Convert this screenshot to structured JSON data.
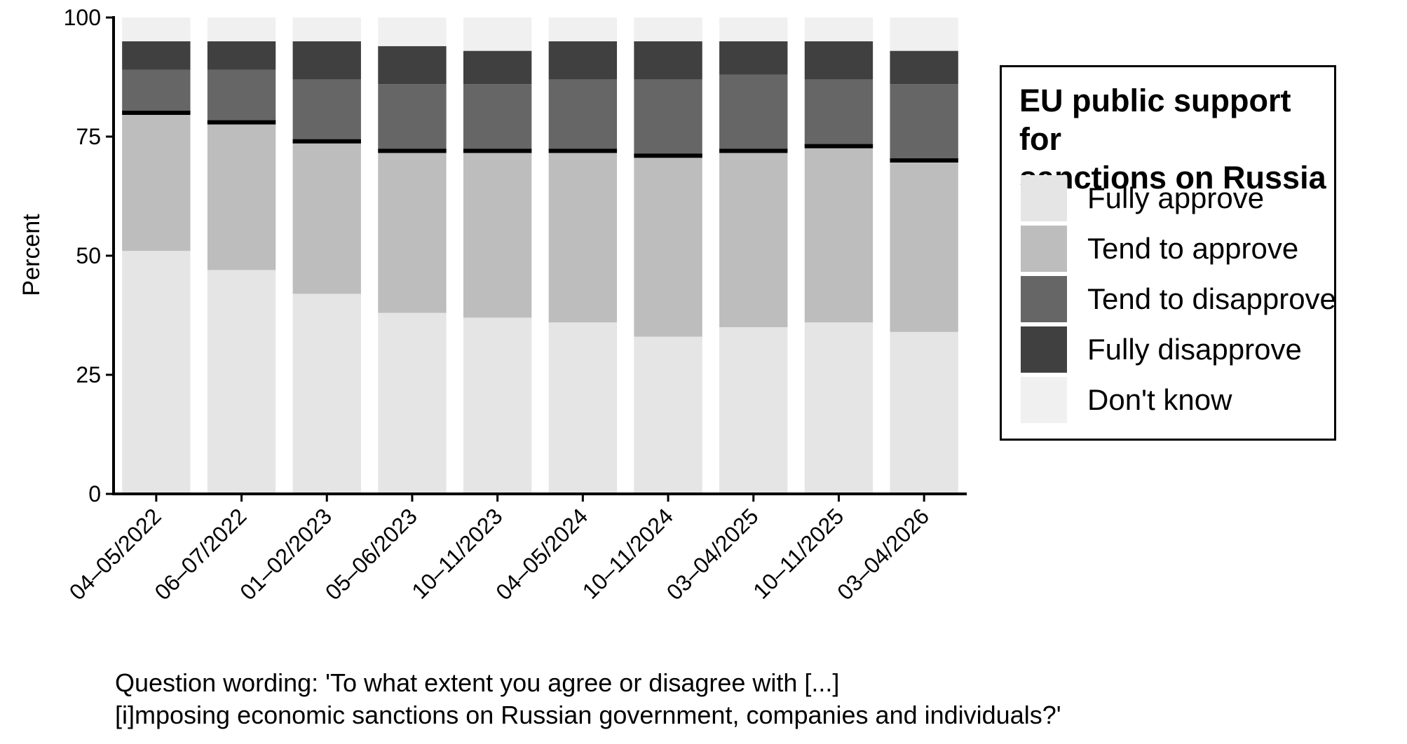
{
  "chart_data": {
    "type": "bar",
    "stacked": true,
    "ylabel": "Percent",
    "ylim": [
      0,
      100
    ],
    "yticks": [
      0,
      25,
      50,
      75,
      100
    ],
    "categories": [
      "04–05/2022",
      "06–07/2022",
      "01–02/2023",
      "05–06/2023",
      "10–11/2023",
      "04–05/2024",
      "10–11/2024",
      "03–04/2025",
      "10–11/2025",
      "03–04/2026"
    ],
    "series": [
      {
        "name": "Fully approve",
        "color": "#e5e5e5",
        "values": [
          51,
          47,
          42,
          38,
          37,
          36,
          33,
          35,
          36,
          34
        ]
      },
      {
        "name": "Tend to approve",
        "color": "#bdbdbd",
        "values": [
          29,
          31,
          32,
          34,
          35,
          36,
          38,
          37,
          37,
          36
        ]
      },
      {
        "name": "Tend to disapprove",
        "color": "#666666",
        "values": [
          9,
          11,
          13,
          14,
          14,
          15,
          16,
          16,
          14,
          16
        ]
      },
      {
        "name": "Fully disapprove",
        "color": "#404040",
        "values": [
          6,
          6,
          8,
          8,
          7,
          8,
          8,
          7,
          8,
          7
        ]
      },
      {
        "name": "Don't know",
        "color": "#f0f0f0",
        "values": [
          5,
          5,
          5,
          6,
          7,
          5,
          5,
          5,
          5,
          7
        ]
      }
    ],
    "approval_line_color": "#000000",
    "legend_position": "right",
    "grid": false
  },
  "legend": {
    "title_line1": "EU public support for",
    "title_line2": "sanctions on Russia",
    "items": [
      "Fully approve",
      "Tend to approve",
      "Tend to disapprove",
      "Fully disapprove",
      "Don't know"
    ]
  },
  "caption": {
    "line1": "Question wording: 'To what extent you agree or disagree with [...]",
    "line2": "[i]mposing economic sanctions on Russian government, companies and individuals?'"
  }
}
